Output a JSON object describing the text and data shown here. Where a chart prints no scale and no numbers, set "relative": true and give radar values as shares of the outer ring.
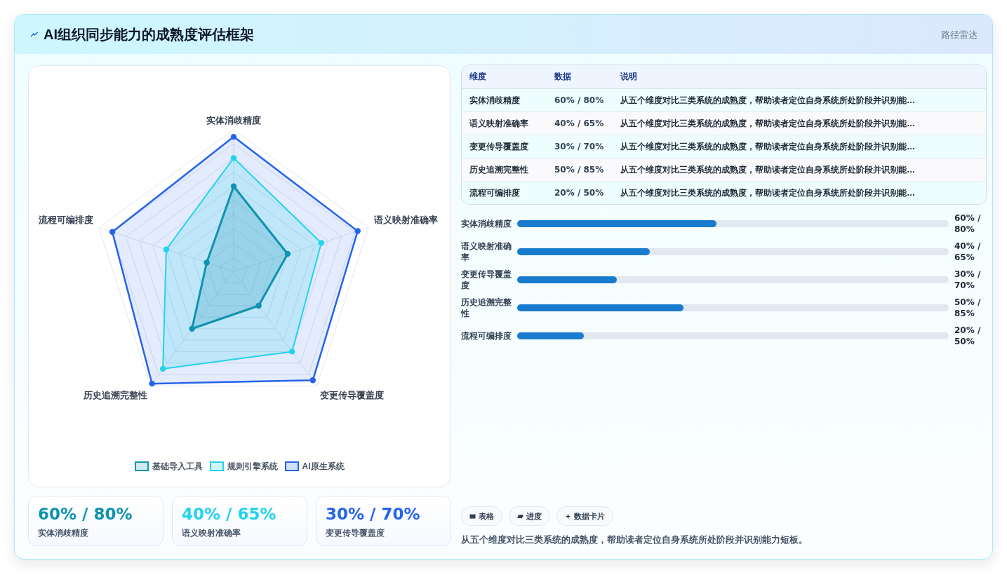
{
  "chart_data": [
    {
      "type": "radar",
      "title": "AI组织同步能力的成熟度评估框架",
      "categories": [
        "实体消歧精度",
        "语义映射准确率",
        "变更传导覆盖度",
        "历史追溯完整性",
        "流程可编排度"
      ],
      "relative": true,
      "grid": true,
      "marker": "circle",
      "legend": "bottom",
      "series": [
        {
          "name": "基础导入工具",
          "color": "#0e93b0",
          "values": [
            0.6,
            0.4,
            0.3,
            0.5,
            0.2
          ]
        },
        {
          "name": "规则引擎系统",
          "color": "#22d3ee",
          "values": [
            0.8,
            0.65,
            0.7,
            0.85,
            0.5
          ]
        },
        {
          "name": "AI原生系统",
          "color": "#2563eb",
          "values": [
            0.95,
            0.92,
            0.95,
            0.98,
            0.9
          ]
        }
      ]
    },
    {
      "type": "other",
      "title": "路径雷达",
      "categories": [
        "实体消歧精度",
        "语义映射准确率",
        "变更传导覆盖度",
        "历史追溯完整性",
        "流程可编排度"
      ],
      "value_labels": [
        "60% / 80%",
        "40% / 65%",
        "30% / 70%",
        "50% / 85%",
        "20% / 50%"
      ],
      "annotations": [
        "维度",
        "数据",
        "说明",
        "从五个维度对比三类系统的成熟度，帮助读者定位自身系统所处阶段并识别能…",
        "从五个维度对比三类系统的成熟度，帮助读者定位自身系统所处阶段并识别能…",
        "从五个维度对比三类系统的成熟度，帮助读者定位自身系统所处阶段并识别能…",
        "从五个维度对比三类系统的成熟度，帮助读者定位自身系统所处阶段并识别能…",
        "从五个维度对比三类系统的成熟度，帮助读者定位自身系统所处阶段并识别能…"
      ]
    },
    {
      "type": "bar",
      "orientation": "horizontal",
      "categories": [
        "实体消歧精度",
        "语义映射准确率",
        "变更传导覆盖度",
        "历史追溯完整性",
        "流程可编排度"
      ],
      "values": [
        60,
        40,
        30,
        50,
        20
      ],
      "value_labels": [
        "60% / 80%",
        "40% / 65%",
        "30% / 70%",
        "50% / 85%",
        "20% / 50%"
      ],
      "xlim": [
        0,
        130
      ],
      "color": "#197bce"
    },
    {
      "type": "other",
      "categories": [
        "实体消歧精度",
        "语义映射准确率",
        "变更传导覆盖度"
      ],
      "value_labels": [
        "60% / 80%",
        "40% / 65%",
        "30% / 70%"
      ]
    },
    {
      "type": "other",
      "annotations": [
        "表格",
        "进度",
        "数据卡片"
      ],
      "subtitle": "从五个维度对比三类系统的成熟度，帮助读者定位自身系统所处阶段并识别能力短板。"
    }
  ]
}
